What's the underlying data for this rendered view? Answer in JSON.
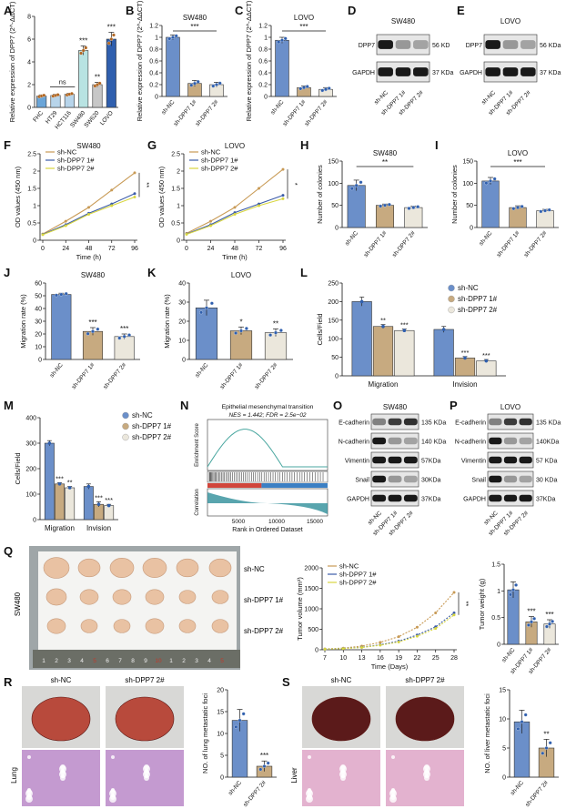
{
  "panels": [
    "A",
    "B",
    "C",
    "D",
    "E",
    "F",
    "G",
    "H",
    "I",
    "J",
    "K",
    "L",
    "M",
    "N",
    "O",
    "P",
    "Q",
    "R",
    "S"
  ],
  "colors": {
    "nc": "#6b8fc9",
    "d1": "#c7aa80",
    "d2": "#ebe7dc",
    "hct": "#b7d4ea",
    "sw480": "#b8e3e2",
    "sw620": "#c7c7c7",
    "lovo": "#2f5fae",
    "gsea": "#4aa7a0"
  },
  "A": {
    "ylabel": "Relative expression of DPP7 (2^-ΔΔCT)",
    "ns": "ns",
    "charts": [
      {
        "type": "bar",
        "categories": [
          "FHC",
          "HT29",
          "HCT116",
          "SW480",
          "SW620",
          "LOVO"
        ],
        "values": [
          1.0,
          1.05,
          1.15,
          5.0,
          2.0,
          6.0
        ],
        "errors": [
          0.1,
          0.1,
          0.1,
          0.4,
          0.2,
          0.6
        ],
        "sig": [
          "",
          "",
          "",
          "***",
          "**",
          "***"
        ],
        "ylim": [
          0,
          8
        ],
        "yticks": [
          0,
          2,
          4,
          6,
          8
        ]
      }
    ]
  },
  "B": {
    "title": "SW480",
    "ylabel": "Relative expression of DPP7 (2^-ΔΔCT)",
    "sig": "***",
    "chart": {
      "type": "bar",
      "categories": [
        "sh-NC",
        "sh-DPP7 1#",
        "sh-DPP7 2#"
      ],
      "values": [
        1.0,
        0.22,
        0.2
      ],
      "errors": [
        0.04,
        0.05,
        0.04
      ],
      "ylim": [
        0,
        1.2
      ],
      "yticks": [
        0,
        0.2,
        0.4,
        0.6,
        0.8,
        1.0,
        1.2
      ]
    }
  },
  "C": {
    "title": "LOVO",
    "ylabel": "Relative expression of DPP7 (2^-ΔΔCT)",
    "sig": "***",
    "chart": {
      "type": "bar",
      "categories": [
        "sh-NC",
        "sh-DPP7 1#",
        "sh-DPP7 2#"
      ],
      "values": [
        0.95,
        0.15,
        0.12
      ],
      "errors": [
        0.05,
        0.03,
        0.03
      ],
      "ylim": [
        0,
        1.2
      ],
      "yticks": [
        0,
        0.2,
        0.4,
        0.6,
        0.8,
        1.0,
        1.2
      ]
    }
  },
  "D": {
    "title": "SW480",
    "rows": [
      {
        "label": "DPP7",
        "size": "56 KD"
      },
      {
        "label": "GAPDH",
        "size": "37 KDa"
      }
    ],
    "lanes": [
      "sh-NC",
      "sh-DPP7 1#",
      "sh-DPP7 2#"
    ]
  },
  "E": {
    "title": "LOVO",
    "rows": [
      {
        "label": "DPP7",
        "size": "56 KDa"
      },
      {
        "label": "GAPDH",
        "size": "37 KDa"
      }
    ],
    "lanes": [
      "sh-NC",
      "sh-DPP7 1#",
      "sh-DPP7 2#"
    ]
  },
  "F": {
    "title": "SW480",
    "ylabel": "OD values (450 nm)",
    "xlabel": "Time (h)",
    "sig": "**",
    "legend": [
      "sh-NC",
      "sh-DPP7 1#",
      "sh-DPP7 2#"
    ],
    "chart": {
      "type": "line",
      "x": [
        0,
        24,
        48,
        72,
        96
      ],
      "series": [
        {
          "name": "sh-NC",
          "values": [
            0.18,
            0.55,
            0.95,
            1.45,
            1.95
          ]
        },
        {
          "name": "sh-DPP7 1#",
          "values": [
            0.17,
            0.45,
            0.78,
            1.05,
            1.35
          ]
        },
        {
          "name": "sh-DPP7 2#",
          "values": [
            0.16,
            0.42,
            0.75,
            1.0,
            1.25
          ]
        }
      ],
      "ylim": [
        0,
        2.5
      ],
      "yticks": [
        0,
        0.5,
        1.0,
        1.5,
        2.0,
        2.5
      ],
      "xticks": [
        0,
        24,
        48,
        72,
        96
      ]
    }
  },
  "G": {
    "title": "LOVO",
    "ylabel": "OD values (450 nm)",
    "xlabel": "Time (h)",
    "sig": "*",
    "legend": [
      "sh-NC",
      "sh-DPP7 1#",
      "sh-DPP7 2#"
    ],
    "chart": {
      "type": "line",
      "x": [
        0,
        24,
        48,
        72,
        96
      ],
      "series": [
        {
          "name": "sh-NC",
          "values": [
            0.2,
            0.55,
            0.95,
            1.5,
            2.05
          ]
        },
        {
          "name": "sh-DPP7 1#",
          "values": [
            0.18,
            0.45,
            0.8,
            1.05,
            1.3
          ]
        },
        {
          "name": "sh-DPP7 2#",
          "values": [
            0.17,
            0.42,
            0.75,
            1.0,
            1.2
          ]
        }
      ],
      "ylim": [
        0,
        2.5
      ],
      "yticks": [
        0,
        0.5,
        1.0,
        1.5,
        2.0,
        2.5
      ],
      "xticks": [
        0,
        24,
        48,
        72,
        96
      ]
    }
  },
  "H": {
    "title": "SW480",
    "ylabel": "Number of colonies",
    "sig": "**",
    "chart": {
      "type": "bar",
      "categories": [
        "sh-NC",
        "sh-DPP7 1#",
        "sh-DPP7 2#"
      ],
      "values": [
        95,
        50,
        45
      ],
      "errors": [
        12,
        3,
        3
      ],
      "ylim": [
        0,
        150
      ],
      "yticks": [
        0,
        50,
        100,
        150
      ]
    }
  },
  "I": {
    "title": "LOVO",
    "ylabel": "Number of colonies",
    "sig": "***",
    "chart": {
      "type": "bar",
      "categories": [
        "sh-NC",
        "sh-DPP7 1#",
        "sh-DPP7 2#"
      ],
      "values": [
        105,
        45,
        38
      ],
      "errors": [
        8,
        4,
        3
      ],
      "ylim": [
        0,
        150
      ],
      "yticks": [
        0,
        50,
        100,
        150
      ]
    }
  },
  "J": {
    "title": "SW480",
    "ylabel": "Migration rate (%)",
    "chart": {
      "type": "bar",
      "categories": [
        "sh-NC",
        "sh-DPP7 1#",
        "sh-DPP7 2#"
      ],
      "values": [
        51,
        22,
        18
      ],
      "errors": [
        1,
        3,
        2
      ],
      "sig": [
        "",
        "***",
        "***"
      ],
      "ylim": [
        0,
        60
      ],
      "yticks": [
        0,
        10,
        20,
        30,
        40,
        50,
        60
      ]
    }
  },
  "K": {
    "title": "LOVO",
    "ylabel": "Migration rate (%)",
    "chart": {
      "type": "bar",
      "categories": [
        "sh-NC",
        "sh-DPP7 1#",
        "sh-DPP7 2#"
      ],
      "values": [
        27,
        15,
        14
      ],
      "errors": [
        4,
        2,
        2
      ],
      "sig": [
        "",
        "*",
        "**"
      ],
      "ylim": [
        0,
        40
      ],
      "yticks": [
        0,
        10,
        20,
        30,
        40
      ]
    }
  },
  "L": {
    "ylabel": "Cells/Field",
    "legend": [
      "sh-NC",
      "sh-DPP7 1#",
      "sh-DPP7 2#"
    ],
    "chart": {
      "type": "bar",
      "categories": [
        "Migration",
        "Invision"
      ],
      "series": [
        {
          "name": "sh-NC",
          "values": [
            200,
            125
          ]
        },
        {
          "name": "sh-DPP7 1#",
          "values": [
            133,
            48
          ]
        },
        {
          "name": "sh-DPP7 2#",
          "values": [
            122,
            40
          ]
        }
      ],
      "errors": [
        [
          12,
          8
        ],
        [
          5,
          4
        ],
        [
          4,
          4
        ]
      ],
      "sig": [
        [
          "",
          "**",
          "***"
        ],
        [
          "",
          "***",
          "***"
        ]
      ],
      "ylim": [
        0,
        250
      ],
      "yticks": [
        0,
        50,
        100,
        150,
        200,
        250
      ]
    }
  },
  "M": {
    "ylabel": "Cells/Field",
    "legend": [
      "sh-NC",
      "sh-DPP7 1#",
      "sh-DPP7 2#"
    ],
    "chart": {
      "type": "bar",
      "categories": [
        "Migration",
        "Invision"
      ],
      "series": [
        {
          "name": "sh-NC",
          "values": [
            300,
            130
          ]
        },
        {
          "name": "sh-DPP7 1#",
          "values": [
            140,
            60
          ]
        },
        {
          "name": "sh-DPP7 2#",
          "values": [
            125,
            55
          ]
        }
      ],
      "errors": [
        [
          10,
          10
        ],
        [
          5,
          10
        ],
        [
          5,
          5
        ]
      ],
      "sig": [
        [
          "",
          "***",
          "**"
        ],
        [
          "",
          "***",
          "***"
        ]
      ],
      "ylim": [
        0,
        400
      ],
      "yticks": [
        0,
        100,
        200,
        300,
        400
      ]
    }
  },
  "N": {
    "title": "Epithelial mesenchymal transition",
    "stats": "NES = 1.442; FDR = 2.5e−02",
    "ylabel_top": "Enrichment Score",
    "ylabel_bottom": "Correlation",
    "xlabel": "Rank in Ordered Dataset",
    "xticks": [
      "5000",
      "10000",
      "15000"
    ]
  },
  "O": {
    "title": "SW480",
    "rows": [
      {
        "label": "E-cadherin",
        "size": "135 KDa"
      },
      {
        "label": "N-cadherin",
        "size": "140 KDa"
      },
      {
        "label": "Vimentin",
        "size": "57KDa"
      },
      {
        "label": "Snail",
        "size": "30KDa"
      },
      {
        "label": "GAPDH",
        "size": "37KDa"
      }
    ],
    "lanes": [
      "sh-NC",
      "sh-DPP7 1#",
      "sh-DPP7 2#"
    ]
  },
  "P": {
    "title": "LOVO",
    "rows": [
      {
        "label": "E-cadherin",
        "size": "135 KDa"
      },
      {
        "label": "N-cadherin",
        "size": "140KDa"
      },
      {
        "label": "Vimentin",
        "size": "57 KDa"
      },
      {
        "label": "Snail",
        "size": "30 KDa"
      },
      {
        "label": "GAPDH",
        "size": "37KDa"
      }
    ],
    "lanes": [
      "sh-NC",
      "sh-DPP7 1#",
      "sh-DPP7 2#"
    ]
  },
  "Q": {
    "side_label": "SW480",
    "groups": [
      "sh-NC",
      "sh-DPP7 1#",
      "sh-DPP7 2#"
    ],
    "ruler_marks": [
      "1",
      "2",
      "3",
      "4",
      "5",
      "6",
      "7",
      "8",
      "9",
      "10",
      "1",
      "2",
      "3",
      "4",
      "5"
    ],
    "volume": {
      "ylabel": "Tumor volume (mm³)",
      "xlabel": "Time (Days)",
      "sig": "**",
      "legend": [
        "sh-NC",
        "sh-DPP7 1#",
        "sh-DPP7 2#"
      ],
      "chart": {
        "type": "line",
        "x": [
          7,
          10,
          13,
          16,
          19,
          22,
          25,
          28
        ],
        "series": [
          {
            "name": "sh-NC",
            "values": [
              20,
              40,
              90,
              180,
              320,
              550,
              900,
              1400
            ]
          },
          {
            "name": "sh-DPP7 1#",
            "values": [
              15,
              30,
              60,
              120,
              210,
              360,
              560,
              900
            ]
          },
          {
            "name": "sh-DPP7 2#",
            "values": [
              15,
              28,
              55,
              110,
              190,
              330,
              520,
              850
            ]
          }
        ],
        "ylim": [
          0,
          2000
        ],
        "yticks": [
          0,
          500,
          1000,
          1500,
          2000
        ],
        "xticks": [
          7,
          10,
          13,
          16,
          19,
          22,
          25,
          28
        ]
      }
    },
    "weight": {
      "ylabel": "Tumor weight (g)",
      "chart": {
        "type": "bar",
        "categories": [
          "sh-NC",
          "sh-DPP7 1#",
          "sh-DPP7 2#"
        ],
        "values": [
          1.02,
          0.42,
          0.38
        ],
        "errors": [
          0.15,
          0.1,
          0.08
        ],
        "sig": [
          "",
          "***",
          "***"
        ],
        "ylim": [
          0,
          1.5
        ],
        "yticks": [
          0,
          0.5,
          1.0,
          1.5
        ]
      }
    }
  },
  "R": {
    "organ": "Lung",
    "groups": [
      "sh-NC",
      "sh-DPP7 2#"
    ],
    "ylabel": "NO. of lung metastatic foci",
    "chart": {
      "type": "bar",
      "categories": [
        "sh-NC",
        "sh-DPP7 2#"
      ],
      "values": [
        13,
        2.5
      ],
      "errors": [
        2.5,
        1.2
      ],
      "sig": [
        "",
        "***"
      ],
      "ylim": [
        0,
        20
      ],
      "yticks": [
        0,
        5,
        10,
        15,
        20
      ]
    }
  },
  "S": {
    "organ": "Liver",
    "groups": [
      "sh-NC",
      "sh-DPP7 2#"
    ],
    "ylabel": "NO. of liver metastatic foci",
    "chart": {
      "type": "bar",
      "categories": [
        "sh-NC",
        "sh-DPP7 2#"
      ],
      "values": [
        9.5,
        5
      ],
      "errors": [
        2,
        1.5
      ],
      "sig": [
        "",
        "**"
      ],
      "ylim": [
        0,
        15
      ],
      "yticks": [
        0,
        5,
        10,
        15
      ]
    }
  }
}
